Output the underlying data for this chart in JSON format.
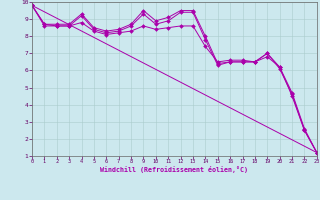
{
  "title": "",
  "xlabel": "Windchill (Refroidissement éolien,°C)",
  "ylabel": "",
  "bg_color": "#cce8ee",
  "line_color": "#aa00aa",
  "grid_color": "#aacccc",
  "xlim": [
    0,
    23
  ],
  "ylim": [
    1,
    10
  ],
  "yticks": [
    1,
    2,
    3,
    4,
    5,
    6,
    7,
    8,
    9,
    10
  ],
  "xticks": [
    0,
    1,
    2,
    3,
    4,
    5,
    6,
    7,
    8,
    9,
    10,
    11,
    12,
    13,
    14,
    15,
    16,
    17,
    18,
    19,
    20,
    21,
    22,
    23
  ],
  "series": [
    {
      "x": [
        0,
        1,
        2,
        3,
        4,
        5,
        6,
        7,
        8,
        9,
        10,
        11,
        12,
        13,
        14,
        15,
        16,
        17,
        18,
        19,
        20,
        21,
        22,
        23
      ],
      "y": [
        9.8,
        8.7,
        8.7,
        8.7,
        9.3,
        8.5,
        8.3,
        8.4,
        8.7,
        9.5,
        8.9,
        9.1,
        9.5,
        9.5,
        8.0,
        6.4,
        6.5,
        6.5,
        6.5,
        7.0,
        6.2,
        4.7,
        2.6,
        1.2
      ]
    },
    {
      "x": [
        0,
        1,
        2,
        3,
        4,
        5,
        6,
        7,
        8,
        9,
        10,
        11,
        12,
        13,
        14,
        15,
        16,
        17,
        18,
        19,
        20,
        21,
        22,
        23
      ],
      "y": [
        9.8,
        8.7,
        8.6,
        8.6,
        9.2,
        8.4,
        8.2,
        8.3,
        8.6,
        9.3,
        8.7,
        8.9,
        9.4,
        9.4,
        7.8,
        6.3,
        6.5,
        6.5,
        6.5,
        7.0,
        6.1,
        4.6,
        2.5,
        1.2
      ]
    },
    {
      "x": [
        0,
        1,
        2,
        3,
        4,
        5,
        6,
        7,
        8,
        9,
        10,
        11,
        12,
        13,
        14,
        15,
        16,
        17,
        18,
        19,
        20,
        21,
        22,
        23
      ],
      "y": [
        9.8,
        8.6,
        8.6,
        8.6,
        8.8,
        8.3,
        8.1,
        8.2,
        8.3,
        8.6,
        8.4,
        8.5,
        8.6,
        8.6,
        7.4,
        6.5,
        6.6,
        6.6,
        6.5,
        6.8,
        6.2,
        4.5,
        2.5,
        1.2
      ]
    },
    {
      "x": [
        0,
        23
      ],
      "y": [
        9.8,
        1.2
      ]
    }
  ]
}
